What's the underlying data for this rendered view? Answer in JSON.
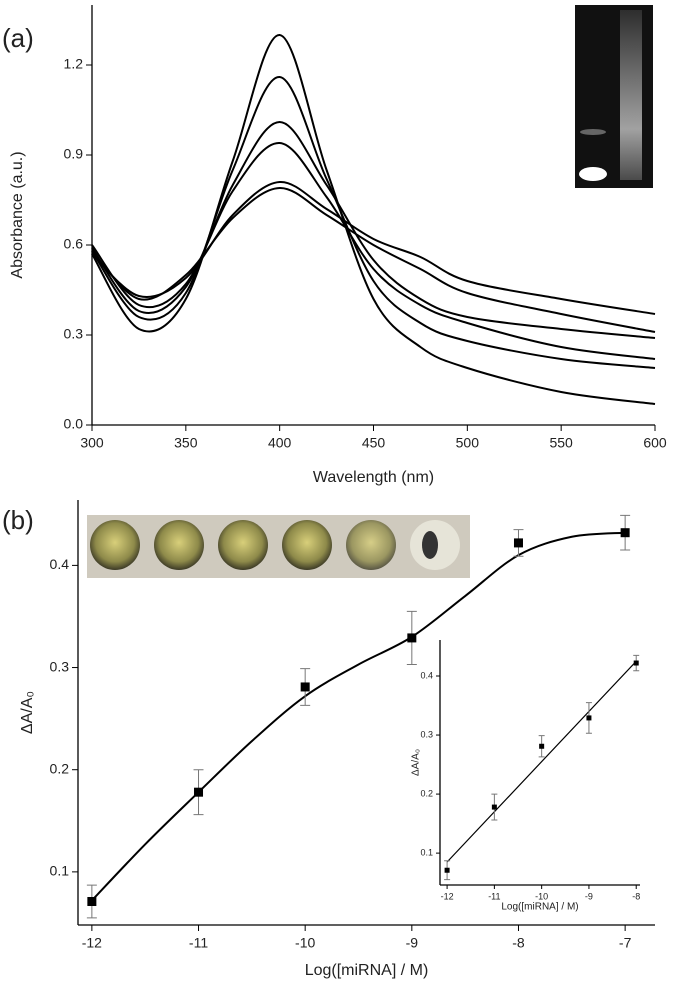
{
  "chart_data": [
    {
      "type": "line",
      "panel_label": "(a)",
      "x_label": "Wavelength (nm)",
      "y_label": "Absorbance (a.u.)",
      "x": [
        300,
        325,
        350,
        375,
        400,
        425,
        450,
        475,
        500,
        550,
        600
      ],
      "series": [
        {
          "color": "#000000",
          "values": [
            0.57,
            0.32,
            0.42,
            0.88,
            1.3,
            0.85,
            0.42,
            0.26,
            0.19,
            0.11,
            0.07
          ]
        },
        {
          "color": "#000000",
          "values": [
            0.58,
            0.36,
            0.44,
            0.85,
            1.16,
            0.82,
            0.48,
            0.34,
            0.28,
            0.22,
            0.19
          ]
        },
        {
          "color": "#000000",
          "values": [
            0.59,
            0.38,
            0.46,
            0.8,
            1.01,
            0.8,
            0.55,
            0.42,
            0.36,
            0.32,
            0.29
          ]
        },
        {
          "color": "#000000",
          "values": [
            0.6,
            0.4,
            0.47,
            0.78,
            0.94,
            0.76,
            0.52,
            0.4,
            0.34,
            0.26,
            0.22
          ]
        },
        {
          "color": "#000000",
          "values": [
            0.57,
            0.43,
            0.49,
            0.7,
            0.81,
            0.72,
            0.62,
            0.56,
            0.48,
            0.42,
            0.37
          ]
        },
        {
          "color": "#000000",
          "values": [
            0.58,
            0.42,
            0.5,
            0.69,
            0.79,
            0.7,
            0.6,
            0.52,
            0.44,
            0.37,
            0.31
          ]
        }
      ],
      "xlim": [
        300,
        600
      ],
      "ylim": [
        0,
        1.4
      ],
      "xticks": [
        300,
        350,
        400,
        450,
        500,
        550,
        600
      ],
      "yticks": [
        {
          "value": 0,
          "label": "0.0"
        },
        0.3,
        0.6,
        0.9,
        1.2
      ]
    },
    {
      "type": "scatter",
      "panel_label": "(b)",
      "x_label": "Log([miRNA] / M)",
      "y_label": "ΔA/A₀",
      "x": [
        -12,
        -11,
        -10,
        -9,
        -8,
        -7
      ],
      "values": [
        0.071,
        0.178,
        0.281,
        0.329,
        0.422,
        0.432
      ],
      "errors": [
        0.016,
        0.022,
        0.018,
        0.026,
        0.013,
        0.017
      ],
      "color": "#000000",
      "fit": {
        "x": [
          -12,
          -11.5,
          -11,
          -10.5,
          -10,
          -9.5,
          -9,
          -8.5,
          -8,
          -7.5,
          -7
        ],
        "values": [
          0.072,
          0.127,
          0.178,
          0.228,
          0.272,
          0.303,
          0.33,
          0.37,
          0.41,
          0.428,
          0.432
        ]
      },
      "xlim": [
        -12.13,
        -6.72
      ],
      "ylim": [
        0.048,
        0.464
      ],
      "xticks": [
        -12,
        -11,
        -10,
        -9,
        -8,
        -7
      ],
      "yticks": [
        0.1,
        0.2,
        0.3,
        0.4
      ]
    },
    {
      "type": "scatter",
      "x_label": "Log([miRNA] / M)",
      "y_label": "ΔA/A₀",
      "x": [
        -12,
        -11,
        -10,
        -9,
        -8
      ],
      "values": [
        0.071,
        0.178,
        0.281,
        0.329,
        0.422
      ],
      "errors": [
        0.016,
        0.022,
        0.018,
        0.026,
        0.013
      ],
      "color": "#000000",
      "fit": {
        "x": [
          -12,
          -8
        ],
        "values": [
          0.085,
          0.425
        ]
      },
      "xlim": [
        -12.15,
        -7.92
      ],
      "ylim": [
        0.046,
        0.461
      ],
      "xticks": [
        -12,
        -11,
        -10,
        -9,
        -8
      ],
      "yticks": [
        0.1,
        0.2,
        0.3,
        0.4
      ]
    }
  ]
}
